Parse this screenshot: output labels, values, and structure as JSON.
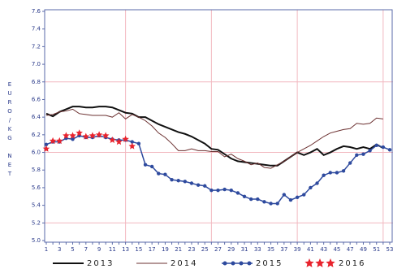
{
  "chart_data": {
    "type": "line",
    "y_label": "EURO/KG NET",
    "categories": [
      1,
      null,
      3,
      null,
      5,
      null,
      7,
      null,
      9,
      null,
      11,
      null,
      13,
      null,
      15,
      null,
      17,
      null,
      19,
      null,
      21,
      null,
      23,
      null,
      25,
      null,
      27,
      null,
      29,
      null,
      31,
      null,
      33,
      null,
      35,
      null,
      37,
      null,
      39,
      null,
      41,
      null,
      43,
      null,
      45,
      null,
      47,
      null,
      49,
      null,
      51,
      null,
      53
    ],
    "ylim": [
      5.0,
      7.6
    ],
    "yticks": [
      {
        "value": 5,
        "label": "5.0"
      },
      5.2,
      5.4,
      5.6,
      5.8,
      {
        "value": 6,
        "label": "6.0"
      },
      6.2,
      6.4,
      6.6,
      6.8,
      {
        "value": 7,
        "label": "7.0"
      },
      7.2,
      7.4,
      7.6
    ],
    "xgrid": [
      13,
      26,
      39,
      52
    ],
    "ygrid": [
      5.2,
      6.0,
      6.8
    ],
    "grid_color": "#f2b8c0",
    "series": [
      {
        "name": "2013",
        "color": "#111111",
        "width": 2,
        "marker": null,
        "values": [
          6.44,
          6.41,
          6.46,
          6.49,
          6.52,
          6.52,
          6.51,
          6.51,
          6.52,
          6.52,
          6.51,
          6.48,
          6.45,
          6.44,
          6.4,
          6.4,
          6.36,
          6.32,
          6.29,
          6.26,
          6.23,
          6.21,
          6.18,
          6.14,
          6.1,
          6.04,
          6.03,
          5.98,
          5.93,
          5.9,
          5.89,
          5.88,
          5.87,
          5.86,
          5.85,
          5.85,
          5.9,
          5.95,
          6.0,
          5.97,
          6.0,
          6.04,
          5.97,
          6.0,
          6.04,
          6.07,
          6.06,
          6.04,
          6.06,
          6.04,
          6.09,
          6.05,
          null
        ]
      },
      {
        "name": "2014",
        "color": "#6b3030",
        "width": 1,
        "marker": null,
        "values": [
          6.42,
          6.43,
          6.46,
          6.47,
          6.49,
          6.44,
          6.43,
          6.42,
          6.42,
          6.42,
          6.4,
          6.45,
          6.38,
          6.43,
          6.4,
          6.36,
          6.3,
          6.22,
          6.17,
          6.1,
          6.02,
          6.02,
          6.04,
          6.02,
          6.02,
          6.01,
          6.01,
          5.95,
          5.98,
          5.93,
          5.9,
          5.86,
          5.88,
          5.83,
          5.82,
          5.86,
          5.9,
          5.95,
          6.0,
          6.04,
          6.08,
          6.13,
          6.18,
          6.22,
          6.24,
          6.26,
          6.27,
          6.33,
          6.32,
          6.33,
          6.39,
          6.38,
          null
        ]
      },
      {
        "name": "2015",
        "color": "#2e4a9e",
        "width": 1.5,
        "marker": "circle",
        "values": [
          6.09,
          6.12,
          6.12,
          6.16,
          6.15,
          6.19,
          6.17,
          6.17,
          6.19,
          6.17,
          6.15,
          6.14,
          6.14,
          6.12,
          6.1,
          5.86,
          5.84,
          5.76,
          5.75,
          5.69,
          5.68,
          5.67,
          5.65,
          5.63,
          5.62,
          5.57,
          5.57,
          5.58,
          5.57,
          5.54,
          5.5,
          5.47,
          5.47,
          5.44,
          5.42,
          5.42,
          5.52,
          5.46,
          5.49,
          5.52,
          5.6,
          5.65,
          5.74,
          5.77,
          5.77,
          5.79,
          5.88,
          5.97,
          5.98,
          6.02,
          6.08,
          6.06,
          6.03
        ]
      },
      {
        "name": "2016",
        "color": "#e8232d",
        "width": 0,
        "marker": "star",
        "values": [
          6.04,
          6.13,
          6.13,
          6.19,
          6.19,
          6.22,
          6.18,
          6.19,
          6.2,
          6.19,
          6.14,
          6.12,
          6.15,
          6.07,
          null,
          null,
          null,
          null,
          null,
          null,
          null,
          null,
          null,
          null,
          null,
          null,
          null,
          null,
          null,
          null,
          null,
          null,
          null,
          null,
          null,
          null,
          null,
          null,
          null,
          null,
          null,
          null,
          null,
          null,
          null,
          null,
          null,
          null,
          null,
          null,
          null,
          null,
          null
        ]
      }
    ]
  }
}
